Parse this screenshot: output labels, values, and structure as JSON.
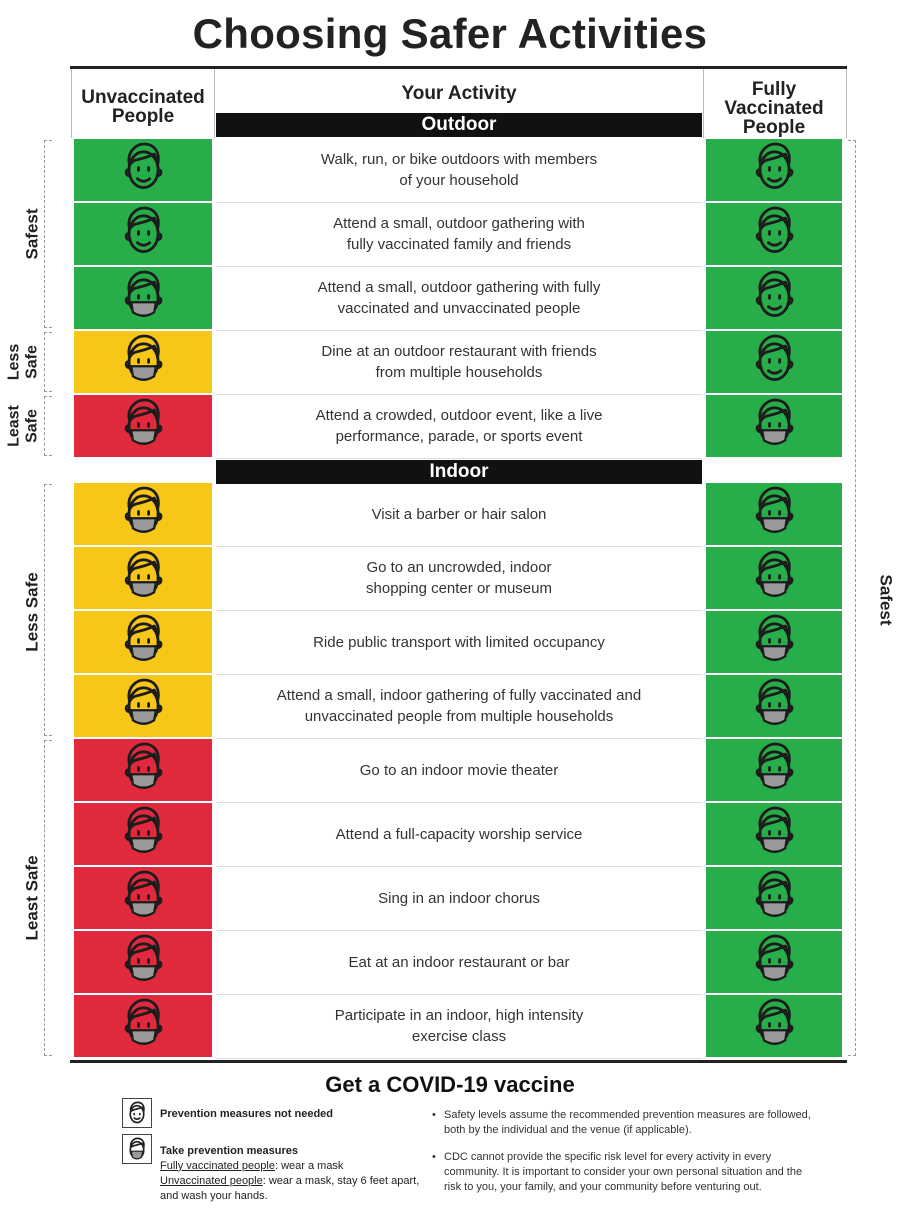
{
  "title": "Choosing Safer Activities",
  "headers": {
    "unvaccinated": "Unvaccinated People",
    "activity": "Your Activity",
    "vaccinated": "Fully Vaccinated People"
  },
  "sections": {
    "outdoor": "Outdoor",
    "indoor": "Indoor"
  },
  "colors": {
    "green": "#27ae4a",
    "yellow": "#f6c619",
    "red": "#e1293e"
  },
  "side_labels": {
    "left": [
      "Safest",
      "Less Safe",
      "Least Safe",
      "Less Safe",
      "Least Safe"
    ],
    "right": "Safest"
  },
  "rows": [
    {
      "text": "Walk, run, or bike outdoors with members\nof your household",
      "left_color": "green",
      "left_icon": "face-icon",
      "right_color": "green",
      "right_icon": "face-icon"
    },
    {
      "text": "Attend a small, outdoor gathering with\nfully vaccinated family and friends",
      "left_color": "green",
      "left_icon": "face-icon",
      "right_color": "green",
      "right_icon": "face-icon"
    },
    {
      "text": "Attend a small, outdoor gathering with fully\nvaccinated and unvaccinated people",
      "left_color": "green",
      "left_icon": "masked-face-icon",
      "right_color": "green",
      "right_icon": "face-icon"
    },
    {
      "text": "Dine at an outdoor restaurant with friends\nfrom multiple households",
      "left_color": "yellow",
      "left_icon": "masked-face-icon",
      "right_color": "green",
      "right_icon": "face-icon"
    },
    {
      "text": "Attend a crowded, outdoor event, like a live\nperformance, parade, or sports event",
      "left_color": "red",
      "left_icon": "masked-face-icon",
      "right_color": "green",
      "right_icon": "masked-face-icon"
    },
    {
      "text": "Visit a barber or hair salon",
      "left_color": "yellow",
      "left_icon": "masked-face-icon",
      "right_color": "green",
      "right_icon": "masked-face-icon"
    },
    {
      "text": "Go to an uncrowded, indoor\nshopping center or museum",
      "left_color": "yellow",
      "left_icon": "masked-face-icon",
      "right_color": "green",
      "right_icon": "masked-face-icon"
    },
    {
      "text": "Ride public transport with limited occupancy",
      "left_color": "yellow",
      "left_icon": "masked-face-icon",
      "right_color": "green",
      "right_icon": "masked-face-icon"
    },
    {
      "text": "Attend a small, indoor gathering of fully vaccinated and\nunvaccinated people from multiple households",
      "left_color": "yellow",
      "left_icon": "masked-face-icon",
      "right_color": "green",
      "right_icon": "masked-face-icon"
    },
    {
      "text": "Go to an indoor movie theater",
      "left_color": "red",
      "left_icon": "masked-face-icon",
      "right_color": "green",
      "right_icon": "masked-face-icon"
    },
    {
      "text": "Attend a full-capacity worship service",
      "left_color": "red",
      "left_icon": "masked-face-icon",
      "right_color": "green",
      "right_icon": "masked-face-icon"
    },
    {
      "text": "Sing in an indoor chorus",
      "left_color": "red",
      "left_icon": "masked-face-icon",
      "right_color": "green",
      "right_icon": "masked-face-icon"
    },
    {
      "text": "Eat at an indoor restaurant or bar",
      "left_color": "red",
      "left_icon": "masked-face-icon",
      "right_color": "green",
      "right_icon": "masked-face-icon"
    },
    {
      "text": "Participate in an indoor, high intensity\nexercise class",
      "left_color": "red",
      "left_icon": "masked-face-icon",
      "right_color": "green",
      "right_icon": "masked-face-icon"
    }
  ],
  "cta": "Get a COVID-19 vaccine",
  "legend": {
    "no_measures": "Prevention measures not needed",
    "measures": "Take prevention measures",
    "vaccinated_label": "Fully vaccinated people",
    "vaccinated_text": ": wear a mask",
    "unvaccinated_label": "Unvaccinated people",
    "unvaccinated_text": ": wear a mask, stay 6 feet apart, and wash your hands."
  },
  "notes": [
    "Safety levels assume the recommended prevention measures are followed, both by the individual and the venue (if applicable).",
    "CDC cannot provide the specific risk level for every activity in every community. It is important to consider your own personal situation and the risk to you, your family, and your community before venturing out."
  ]
}
